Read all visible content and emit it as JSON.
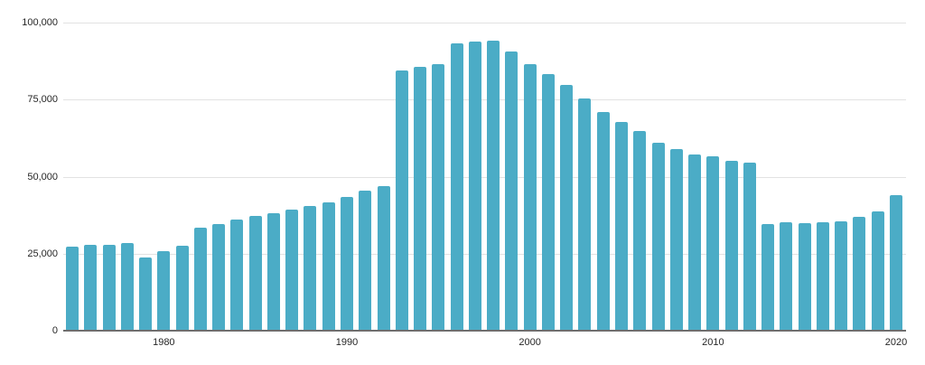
{
  "chart_data": {
    "type": "bar",
    "title": "",
    "xlabel": "",
    "ylabel": "",
    "x": [
      1975,
      1976,
      1977,
      1978,
      1979,
      1980,
      1981,
      1982,
      1983,
      1984,
      1985,
      1986,
      1987,
      1988,
      1989,
      1990,
      1991,
      1992,
      1993,
      1994,
      1995,
      1996,
      1997,
      1998,
      1999,
      2000,
      2001,
      2002,
      2003,
      2004,
      2005,
      2006,
      2007,
      2008,
      2009,
      2010,
      2011,
      2012,
      2013,
      2014,
      2015,
      2016,
      2017,
      2018,
      2019,
      2020
    ],
    "values": [
      27200,
      27800,
      27800,
      28400,
      23700,
      25700,
      27700,
      33300,
      34500,
      36000,
      37200,
      38000,
      39400,
      40500,
      41700,
      43400,
      45600,
      47000,
      84500,
      85500,
      86500,
      93200,
      93900,
      94200,
      90500,
      86500,
      83300,
      79800,
      75400,
      71100,
      67600,
      64700,
      60900,
      58900,
      57300,
      56600,
      55200,
      54400,
      34500,
      35100,
      34800,
      35300,
      35600,
      37000,
      38700,
      44100
    ],
    "ylim": [
      0,
      100000
    ],
    "y_ticks": [
      0,
      25000,
      50000,
      75000,
      100000
    ],
    "y_tick_labels": [
      "0",
      "25,000",
      "50,000",
      "75,000",
      "100,000"
    ],
    "x_tick_years": [
      1980,
      1990,
      2000,
      2010,
      2020
    ],
    "x_tick_labels": [
      "1980",
      "1990",
      "2000",
      "2010",
      "2020"
    ],
    "grid": true,
    "legend": false,
    "bar_color": "#4BACC6",
    "gridline_color": "#e2e2e2",
    "axis_color": "#6e6e6e",
    "label_color": "#262626"
  }
}
